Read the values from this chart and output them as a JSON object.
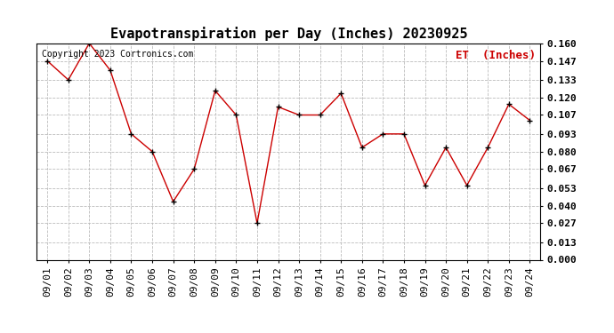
{
  "title": "Evapotranspiration per Day (Inches) 20230925",
  "copyright": "Copyright 2023 Cortronics.com",
  "legend_label": "ET  (Inches)",
  "dates": [
    "09/01",
    "09/02",
    "09/03",
    "09/04",
    "09/05",
    "09/06",
    "09/07",
    "09/08",
    "09/09",
    "09/10",
    "09/11",
    "09/12",
    "09/13",
    "09/14",
    "09/15",
    "09/16",
    "09/17",
    "09/18",
    "09/19",
    "09/20",
    "09/21",
    "09/22",
    "09/23",
    "09/24"
  ],
  "values": [
    0.147,
    0.133,
    0.16,
    0.14,
    0.093,
    0.08,
    0.043,
    0.067,
    0.125,
    0.107,
    0.027,
    0.113,
    0.107,
    0.107,
    0.123,
    0.083,
    0.093,
    0.093,
    0.055,
    0.083,
    0.055,
    0.083,
    0.115,
    0.103
  ],
  "line_color": "#cc0000",
  "marker_color": "#000000",
  "background_color": "#ffffff",
  "grid_color": "#bbbbbb",
  "title_fontsize": 11,
  "copyright_fontsize": 7,
  "legend_fontsize": 9,
  "tick_fontsize": 8,
  "ylim": [
    0.0,
    0.16
  ],
  "yticks": [
    0.0,
    0.013,
    0.027,
    0.04,
    0.053,
    0.067,
    0.08,
    0.093,
    0.107,
    0.12,
    0.133,
    0.147,
    0.16
  ]
}
